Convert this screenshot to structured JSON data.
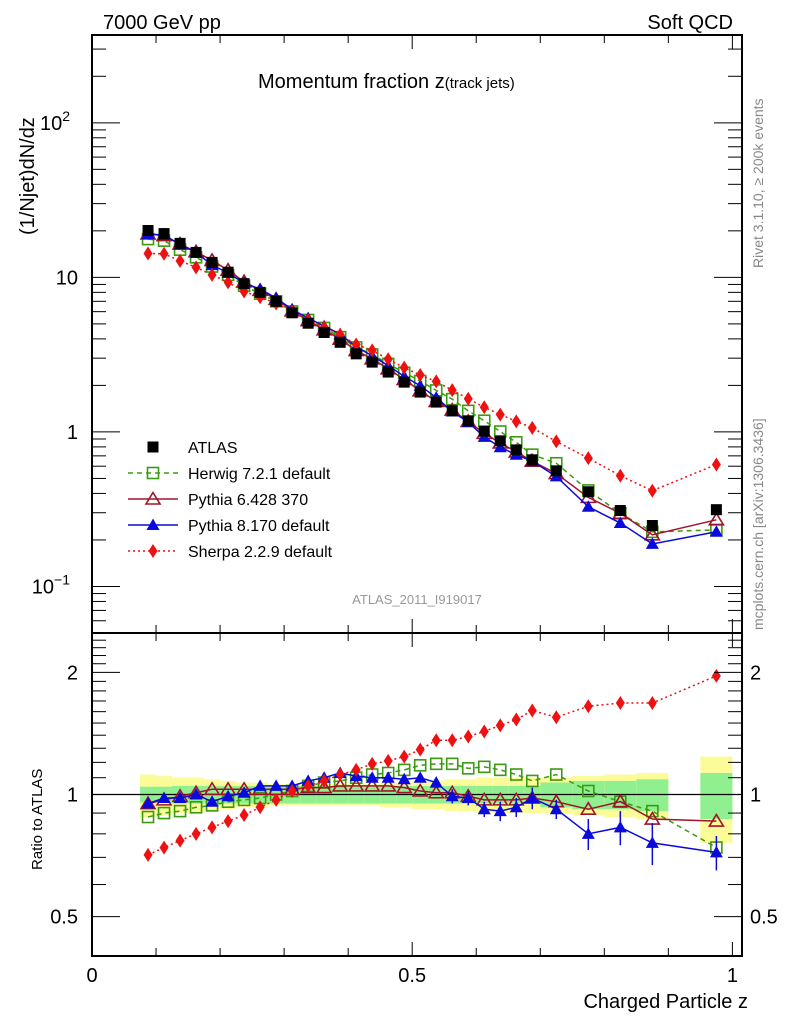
{
  "header": {
    "left_label": "7000 GeV pp",
    "right_label": "Soft QCD"
  },
  "side_labels": {
    "rivet": "Rivet 3.1.10, ≥ 200k events",
    "mcplots": "mcplots.cern.ch [arXiv:1306.3436]"
  },
  "analysis_id": "ATLAS_2011_I919017",
  "chart_data": [
    {
      "type": "scatter",
      "panel": "main",
      "title": "Momentum fraction z",
      "title_suffix": "(track jets)",
      "ylabel": "(1/Njet)dN/dz",
      "yscale": "log",
      "ylim": [
        0.05,
        370
      ],
      "xlim": [
        0,
        1.015
      ],
      "yticks": [
        {
          "value": 100,
          "base": "10",
          "exp": "2"
        },
        {
          "value": 10,
          "base": "10",
          "exp": ""
        },
        {
          "value": 1,
          "base": "1",
          "exp": ""
        },
        {
          "value": 0.1,
          "base": "10",
          "exp": "−1"
        }
      ],
      "legend_position": "bottom-left",
      "x": [
        0.0875,
        0.1125,
        0.1375,
        0.1625,
        0.1875,
        0.2125,
        0.2375,
        0.2625,
        0.2875,
        0.3125,
        0.3375,
        0.3625,
        0.3875,
        0.4125,
        0.4375,
        0.4625,
        0.4875,
        0.5125,
        0.5375,
        0.5625,
        0.5875,
        0.6125,
        0.6375,
        0.6625,
        0.6875,
        0.725,
        0.775,
        0.825,
        0.875,
        0.975
      ],
      "bin_edges": [
        0.075,
        0.1,
        0.125,
        0.15,
        0.175,
        0.2,
        0.225,
        0.25,
        0.275,
        0.3,
        0.325,
        0.35,
        0.375,
        0.4,
        0.425,
        0.45,
        0.475,
        0.5,
        0.525,
        0.55,
        0.575,
        0.6,
        0.625,
        0.65,
        0.675,
        0.7,
        0.75,
        0.8,
        0.85,
        0.9,
        0.95,
        1.0
      ],
      "series": [
        {
          "name": "ATLAS",
          "color": "#000000",
          "marker": "square-filled",
          "line": "none",
          "values": [
            20.1,
            19.2,
            16.6,
            14.5,
            12.5,
            10.8,
            9.1,
            8.0,
            7.0,
            5.9,
            5.05,
            4.4,
            3.8,
            3.2,
            2.83,
            2.44,
            2.1,
            1.81,
            1.56,
            1.37,
            1.18,
            1.01,
            0.875,
            0.765,
            0.66,
            0.56,
            0.41,
            0.31,
            0.248,
            0.314
          ]
        },
        {
          "name": "Herwig 7.2.1 default",
          "color": "#3a9a10",
          "marker": "square-open",
          "line": "dashed",
          "ratio": [
            0.88,
            0.9,
            0.91,
            0.93,
            0.94,
            0.96,
            0.97,
            0.98,
            1.0,
            1.02,
            1.05,
            1.07,
            1.08,
            1.1,
            1.12,
            1.13,
            1.15,
            1.18,
            1.19,
            1.19,
            1.16,
            1.17,
            1.15,
            1.12,
            1.08,
            1.12,
            1.02,
            0.96,
            0.91,
            0.74
          ]
        },
        {
          "name": "Pythia 6.428 370",
          "color": "#a0142a",
          "marker": "triangle-open",
          "line": "solid",
          "ratio": [
            0.95,
            0.97,
            0.99,
            1.01,
            1.03,
            1.03,
            1.03,
            1.03,
            1.03,
            1.03,
            1.04,
            1.04,
            1.05,
            1.05,
            1.05,
            1.05,
            1.04,
            1.02,
            1.01,
            1.01,
            0.99,
            0.97,
            0.97,
            0.97,
            0.98,
            0.96,
            0.92,
            0.96,
            0.87,
            0.86
          ]
        },
        {
          "name": "Pythia 8.170 default",
          "color": "#0a0adc",
          "marker": "triangle-filled",
          "line": "solid",
          "ratio": [
            0.95,
            0.98,
            0.98,
            1.0,
            0.96,
            0.99,
            1.01,
            1.05,
            1.05,
            1.05,
            1.08,
            1.1,
            1.13,
            1.11,
            1.1,
            1.1,
            1.09,
            1.1,
            1.07,
            0.99,
            0.98,
            0.92,
            0.91,
            0.93,
            0.98,
            0.92,
            0.8,
            0.83,
            0.76,
            0.72
          ],
          "ratio_err": [
            0.01,
            0.01,
            0.01,
            0.01,
            0.01,
            0.01,
            0.01,
            0.01,
            0.01,
            0.01,
            0.01,
            0.01,
            0.02,
            0.02,
            0.02,
            0.02,
            0.02,
            0.03,
            0.03,
            0.04,
            0.04,
            0.04,
            0.05,
            0.05,
            0.06,
            0.05,
            0.07,
            0.08,
            0.09,
            0.07
          ]
        },
        {
          "name": "Sherpa 2.2.9 default",
          "color": "#ee1111",
          "marker": "diamond-filled",
          "line": "dotted",
          "ratio": [
            0.71,
            0.74,
            0.77,
            0.8,
            0.83,
            0.86,
            0.89,
            0.93,
            0.97,
            1.02,
            1.05,
            1.08,
            1.12,
            1.15,
            1.19,
            1.21,
            1.24,
            1.29,
            1.36,
            1.36,
            1.39,
            1.43,
            1.48,
            1.53,
            1.61,
            1.55,
            1.65,
            1.68,
            1.68,
            1.96
          ]
        }
      ]
    },
    {
      "type": "scatter",
      "panel": "ratio",
      "ylabel": "Ratio to ATLAS",
      "xlabel": "Charged Particle z",
      "yscale": "log",
      "ylim": [
        0.4,
        2.5
      ],
      "xlim": [
        0,
        1.015
      ],
      "yticks": [
        0.5,
        1,
        2
      ],
      "xticks": [
        0,
        0.5,
        1
      ],
      "xtick_labels": [
        "0",
        "0.5",
        "1"
      ],
      "reference_line": 1,
      "band_stat": [
        0.045,
        0.045,
        0.05,
        0.05,
        0.05,
        0.05,
        0.05,
        0.05,
        0.05,
        0.05,
        0.05,
        0.05,
        0.05,
        0.05,
        0.05,
        0.05,
        0.05,
        0.05,
        0.05,
        0.05,
        0.05,
        0.05,
        0.05,
        0.05,
        0.05,
        0.07,
        0.08,
        0.08,
        0.09,
        0.13
      ],
      "band_total": [
        0.12,
        0.11,
        0.1,
        0.1,
        0.09,
        0.08,
        0.07,
        0.07,
        0.06,
        0.06,
        0.06,
        0.06,
        0.06,
        0.06,
        0.06,
        0.07,
        0.07,
        0.08,
        0.08,
        0.09,
        0.09,
        0.1,
        0.1,
        0.1,
        0.1,
        0.1,
        0.11,
        0.12,
        0.13,
        0.24
      ],
      "band_colors": {
        "stat": "#90f090",
        "total": "#fbfb98"
      }
    }
  ]
}
